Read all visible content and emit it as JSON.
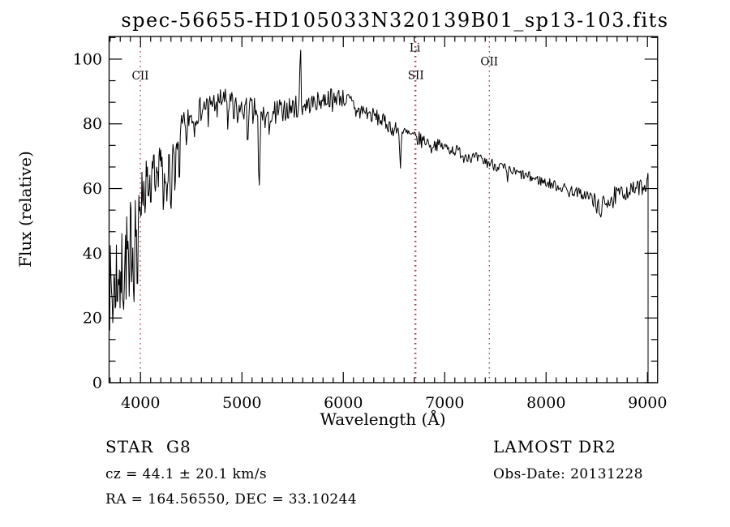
{
  "title": "spec-56655-HD105033N320139B01_sp13-103.fits",
  "colors": {
    "background": "#ffffff",
    "spectrum_line": "#000000",
    "frame": "#000000",
    "marker_line": "#9b3333",
    "text": "#000000"
  },
  "annotations": {
    "class_label": "STAR",
    "subclass": "G8",
    "survey": "LAMOST DR2",
    "cz_text": "cz = 44.1 ± 20.1 km/s",
    "cz_value": 44.1,
    "cz_error": 20.1,
    "obs_date_text": "Obs-Date: 20131228",
    "obs_date": "20131228",
    "ra_dec_text": "RA = 164.56550, DEC = 33.10244",
    "ra": 164.5655,
    "dec": 33.10244
  },
  "chart_data": {
    "type": "line",
    "title": "spec-56655-HD105033N320139B01_sp13-103.fits",
    "xlabel": "Wavelength (Å)",
    "ylabel": "Flux (relative)",
    "xlim": [
      3690,
      9100
    ],
    "ylim": [
      0,
      107
    ],
    "xticks": [
      4000,
      5000,
      6000,
      7000,
      8000,
      9000
    ],
    "yticks": [
      0,
      20,
      40,
      60,
      80,
      100
    ],
    "x_minor_step": 100,
    "y_minor_step": 6.6667,
    "grid": false,
    "legend": null,
    "line_color": "#000000",
    "marker_lines": [
      {
        "label": "CII",
        "wavelength": 3998,
        "label_flux": 93.7
      },
      {
        "label": "Li",
        "wavelength": 6706,
        "label_flux": 102.4
      },
      {
        "label": "SII",
        "wavelength": 6716,
        "label_flux": 93.9
      },
      {
        "label": "OII",
        "wavelength": 7440,
        "label_flux": 98.1
      }
    ],
    "spectrum": {
      "seed": 7,
      "step_dense": 6,
      "dense_until": 4400,
      "step": 8,
      "loop_end": 8996,
      "noise_bias": 0.68,
      "noise_scale": 2.3,
      "flux_clip": [
        0,
        106.5
      ],
      "envelope": [
        [
          3690,
          36
        ],
        [
          3710,
          32
        ],
        [
          3730,
          36
        ],
        [
          3760,
          40
        ],
        [
          3790,
          42
        ],
        [
          3820,
          40
        ],
        [
          3850,
          43
        ],
        [
          3880,
          46
        ],
        [
          3910,
          50
        ],
        [
          3940,
          53
        ],
        [
          3970,
          56
        ],
        [
          4000,
          60
        ],
        [
          4030,
          63
        ],
        [
          4060,
          65
        ],
        [
          4090,
          66
        ],
        [
          4120,
          67
        ],
        [
          4160,
          68.5
        ],
        [
          4200,
          70
        ],
        [
          4240,
          71
        ],
        [
          4280,
          71.5
        ],
        [
          4320,
          72
        ],
        [
          4360,
          76
        ],
        [
          4400,
          80
        ],
        [
          4450,
          82.5
        ],
        [
          4500,
          84
        ],
        [
          4550,
          85
        ],
        [
          4600,
          86
        ],
        [
          4650,
          87
        ],
        [
          4700,
          88
        ],
        [
          4750,
          88.5
        ],
        [
          4800,
          89
        ],
        [
          4850,
          88.5
        ],
        [
          4900,
          87.5
        ],
        [
          4950,
          86
        ],
        [
          5000,
          85.5
        ],
        [
          5050,
          86
        ],
        [
          5100,
          86.5
        ],
        [
          5150,
          85
        ],
        [
          5200,
          84
        ],
        [
          5250,
          84.5
        ],
        [
          5300,
          85
        ],
        [
          5350,
          85.5
        ],
        [
          5400,
          86
        ],
        [
          5450,
          86
        ],
        [
          5500,
          86.5
        ],
        [
          5550,
          86.5
        ],
        [
          5600,
          87
        ],
        [
          5650,
          87
        ],
        [
          5700,
          87.5
        ],
        [
          5750,
          88
        ],
        [
          5800,
          88.5
        ],
        [
          5850,
          89
        ],
        [
          5900,
          89.5
        ],
        [
          5950,
          89.5
        ],
        [
          6000,
          89
        ],
        [
          6050,
          88
        ],
        [
          6100,
          87
        ],
        [
          6150,
          86
        ],
        [
          6200,
          85
        ],
        [
          6250,
          84
        ],
        [
          6300,
          83.5
        ],
        [
          6350,
          82.5
        ],
        [
          6400,
          81.5
        ],
        [
          6450,
          80.5
        ],
        [
          6500,
          79.5
        ],
        [
          6550,
          78.5
        ],
        [
          6600,
          78
        ],
        [
          6650,
          77.5
        ],
        [
          6700,
          76.5
        ],
        [
          6750,
          76
        ],
        [
          6800,
          75.5
        ],
        [
          6850,
          75
        ],
        [
          6900,
          74.5
        ],
        [
          6950,
          74
        ],
        [
          7000,
          73.5
        ],
        [
          7050,
          73
        ],
        [
          7100,
          72.5
        ],
        [
          7150,
          72
        ],
        [
          7200,
          71.5
        ],
        [
          7250,
          70.5
        ],
        [
          7300,
          70
        ],
        [
          7350,
          69.5
        ],
        [
          7400,
          69
        ],
        [
          7450,
          68.5
        ],
        [
          7500,
          68
        ],
        [
          7550,
          67.5
        ],
        [
          7600,
          66.5
        ],
        [
          7650,
          66
        ],
        [
          7700,
          65.5
        ],
        [
          7750,
          65
        ],
        [
          7800,
          64.5
        ],
        [
          7850,
          64
        ],
        [
          7900,
          63.5
        ],
        [
          7950,
          63
        ],
        [
          8000,
          62.5
        ],
        [
          8050,
          62
        ],
        [
          8100,
          61.5
        ],
        [
          8150,
          61
        ],
        [
          8200,
          60.5
        ],
        [
          8250,
          60
        ],
        [
          8300,
          59.5
        ],
        [
          8350,
          59
        ],
        [
          8400,
          58.5
        ],
        [
          8450,
          58
        ],
        [
          8500,
          56
        ],
        [
          8550,
          55.5
        ],
        [
          8600,
          57.5
        ],
        [
          8650,
          58.5
        ],
        [
          8700,
          59
        ],
        [
          8750,
          59.5
        ],
        [
          8800,
          60
        ],
        [
          8850,
          60.5
        ],
        [
          8900,
          61
        ],
        [
          8950,
          61.5
        ],
        [
          9000,
          62.5
        ],
        [
          9012,
          63.5
        ]
      ],
      "noise_segments": [
        [
          3690,
          3960,
          13
        ],
        [
          3960,
          4060,
          7
        ],
        [
          4060,
          4200,
          4.5
        ],
        [
          4200,
          4360,
          6
        ],
        [
          4360,
          4600,
          3.5
        ],
        [
          4600,
          5120,
          3.2
        ],
        [
          5120,
          5620,
          3.2
        ],
        [
          5620,
          6150,
          2.6
        ],
        [
          6150,
          6800,
          2.2
        ],
        [
          6800,
          7600,
          1.7
        ],
        [
          7600,
          8400,
          1.5
        ],
        [
          8400,
          8700,
          2.6
        ],
        [
          8700,
          9012,
          2.2
        ]
      ],
      "features": [
        {
          "c": 3727,
          "w": 10,
          "floor": 18
        },
        {
          "c": 3750,
          "w": 8,
          "floor": 23
        },
        {
          "c": 3771,
          "w": 8,
          "floor": 21
        },
        {
          "c": 3798,
          "w": 8,
          "floor": 23
        },
        {
          "c": 3835,
          "w": 9,
          "floor": 22
        },
        {
          "c": 3889,
          "w": 9,
          "floor": 26
        },
        {
          "c": 3934,
          "w": 11,
          "floor": 23
        },
        {
          "c": 3969,
          "w": 11,
          "floor": 27
        },
        {
          "c": 4046,
          "w": 8,
          "floor": 51
        },
        {
          "c": 4077,
          "w": 7,
          "floor": 55
        },
        {
          "c": 4101,
          "w": 10,
          "floor": 54
        },
        {
          "c": 4144,
          "w": 8,
          "floor": 58
        },
        {
          "c": 4175,
          "w": 7,
          "floor": 60
        },
        {
          "c": 4226,
          "w": 10,
          "floor": 52
        },
        {
          "c": 4260,
          "w": 12,
          "floor": 56
        },
        {
          "c": 4300,
          "w": 15,
          "floor": 53
        },
        {
          "c": 4340,
          "w": 9,
          "floor": 58
        },
        {
          "c": 4383,
          "w": 10,
          "floor": 61
        },
        {
          "c": 4455,
          "w": 8,
          "floor": 71
        },
        {
          "c": 4530,
          "w": 9,
          "floor": 75
        },
        {
          "c": 4668,
          "w": 8,
          "floor": 79
        },
        {
          "c": 4754,
          "w": 7,
          "floor": 81
        },
        {
          "c": 4861,
          "w": 10,
          "floor": 78
        },
        {
          "c": 4920,
          "w": 8,
          "floor": 79
        },
        {
          "c": 4957,
          "w": 7,
          "floor": 80
        },
        {
          "c": 5056,
          "w": 9,
          "floor": 71
        },
        {
          "c": 5110,
          "w": 7,
          "floor": 79
        },
        {
          "c": 5170,
          "w": 15,
          "floor": 60
        },
        {
          "c": 5230,
          "w": 8,
          "floor": 78
        },
        {
          "c": 5270,
          "w": 10,
          "floor": 76
        },
        {
          "c": 5332,
          "w": 7,
          "floor": 80
        },
        {
          "c": 5406,
          "w": 7,
          "floor": 80
        },
        {
          "c": 5577,
          "w": 8,
          "peak": 105.5
        },
        {
          "c": 5894,
          "w": 8,
          "floor": 83
        },
        {
          "c": 6123,
          "w": 7,
          "floor": 82
        },
        {
          "c": 6162,
          "w": 7,
          "floor": 81
        },
        {
          "c": 6280,
          "w": 7,
          "floor": 79
        },
        {
          "c": 6495,
          "w": 7,
          "floor": 75
        },
        {
          "c": 6563,
          "w": 12,
          "floor": 66
        },
        {
          "c": 6870,
          "w": 9,
          "floor": 70.5
        },
        {
          "c": 7186,
          "w": 8,
          "floor": 67.5
        },
        {
          "c": 7620,
          "w": 10,
          "floor": 62
        },
        {
          "c": 8230,
          "w": 8,
          "floor": 57
        },
        {
          "c": 8350,
          "w": 7,
          "floor": 56.5
        },
        {
          "c": 8498,
          "w": 10,
          "floor": 52
        },
        {
          "c": 8542,
          "w": 11,
          "floor": 50.8
        },
        {
          "c": 8662,
          "w": 9,
          "floor": 53.5
        }
      ],
      "end_points": [
        [
          9000,
          63
        ],
        [
          9004,
          64.8
        ],
        [
          9006,
          64
        ],
        [
          9006,
          0
        ]
      ]
    }
  }
}
